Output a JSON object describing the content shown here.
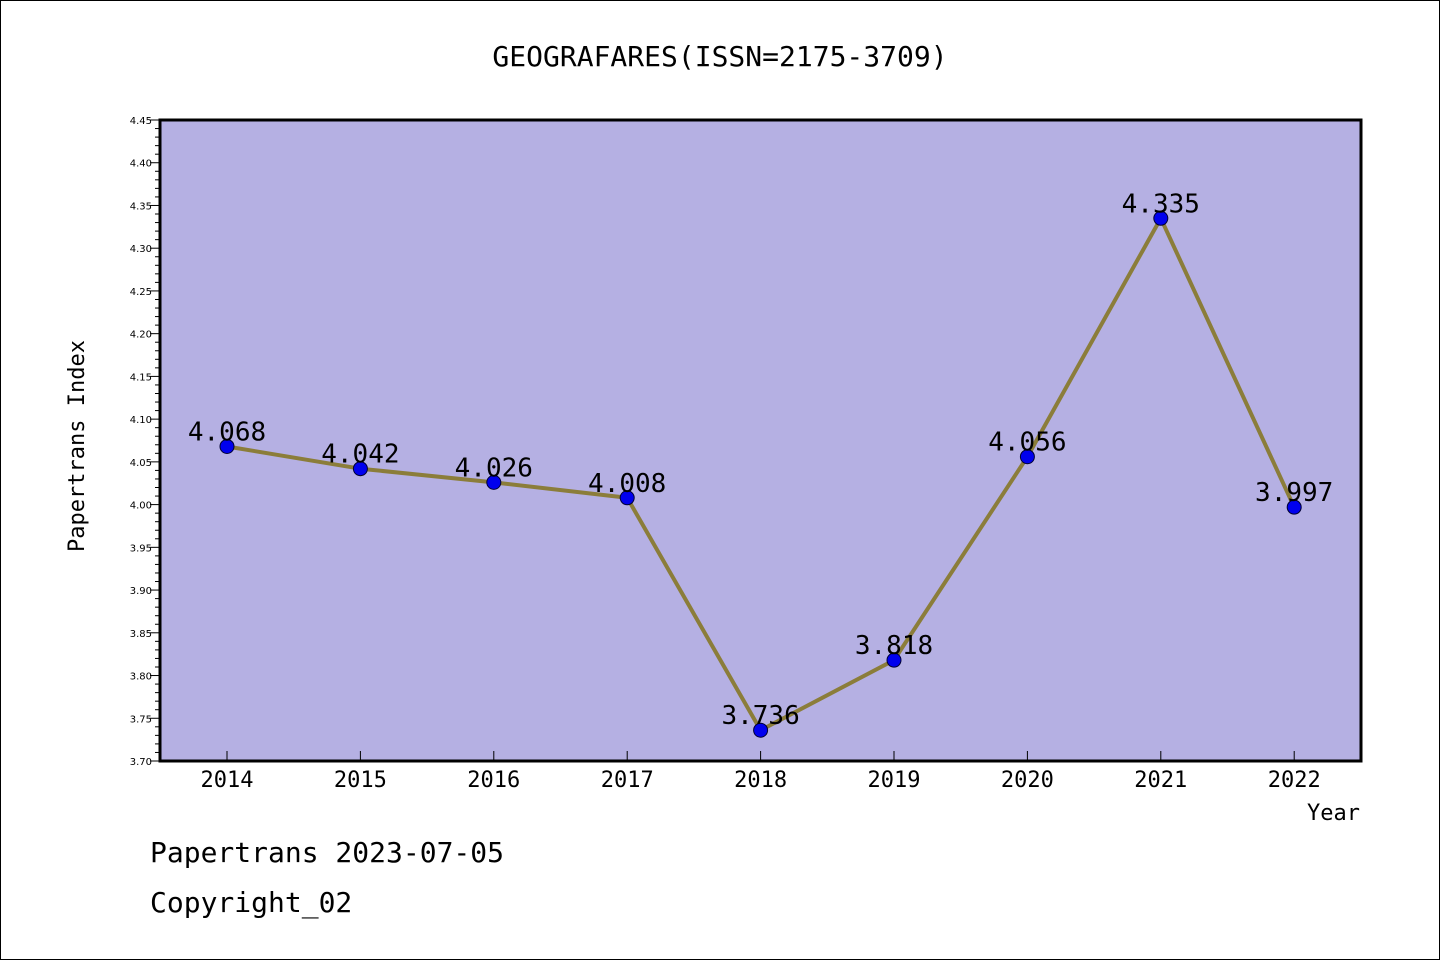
{
  "chart_data": {
    "type": "line",
    "title": "GEOGRAFARES(ISSN=2175-3709)",
    "xlabel": "Year",
    "ylabel": "Papertrans Index",
    "categories": [
      "2014",
      "2015",
      "2016",
      "2017",
      "2018",
      "2019",
      "2020",
      "2021",
      "2022"
    ],
    "series": [
      {
        "values": [
          4.068,
          4.042,
          4.026,
          4.008,
          3.736,
          3.818,
          4.056,
          4.335,
          3.997
        ],
        "labels": [
          "4.068",
          "4.042",
          "4.026",
          "4.008",
          "3.736",
          "3.818",
          "4.056",
          "4.335",
          "3.997"
        ]
      }
    ],
    "ylim": [
      3.7,
      4.45
    ],
    "yticks": [
      "3.70",
      "3.75",
      "3.80",
      "3.85",
      "3.90",
      "3.95",
      "4.00",
      "4.05",
      "4.10",
      "4.15",
      "4.20",
      "4.25",
      "4.30",
      "4.35",
      "4.40",
      "4.45"
    ],
    "grid": false,
    "legend": "none",
    "colors": {
      "plot_background": "#b5b0e3",
      "line": "#8b7d3a",
      "marker": "#0000ee",
      "axis": "#000000"
    }
  },
  "footer": {
    "line1": "Papertrans 2023-07-05",
    "line2": "Copyright_02"
  }
}
